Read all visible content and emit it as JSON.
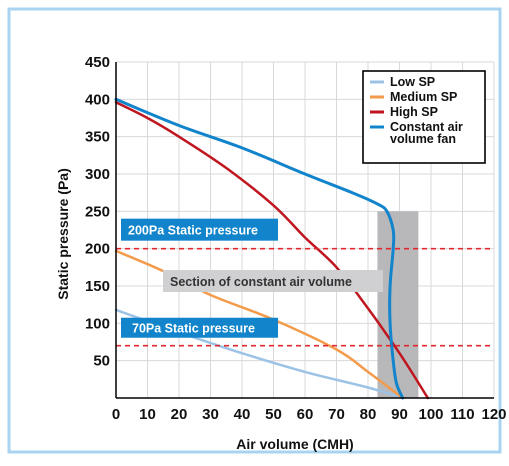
{
  "chart_data": {
    "type": "line",
    "xlabel": "Air volume (CMH)",
    "ylabel": "Static pressure (Pa)",
    "xlim": [
      0,
      120
    ],
    "ylim": [
      0,
      450
    ],
    "x_ticks": [
      "0",
      "10",
      "20",
      "30",
      "40",
      "50",
      "60",
      "70",
      "80",
      "90",
      "100",
      "110",
      "120"
    ],
    "y_ticks": [
      "50",
      "100",
      "150",
      "200",
      "250",
      "300",
      "350",
      "400",
      "450"
    ],
    "grid": true,
    "legend_position": "top-right",
    "series": [
      {
        "name": "Low SP",
        "color": "#9cc3e5",
        "points": [
          [
            0,
            118
          ],
          [
            20,
            88
          ],
          [
            40,
            60
          ],
          [
            60,
            35
          ],
          [
            80,
            14
          ],
          [
            91,
            0
          ]
        ]
      },
      {
        "name": "Medium SP",
        "color": "#f39b4a",
        "points": [
          [
            0,
            197
          ],
          [
            15,
            170
          ],
          [
            30,
            138
          ],
          [
            50,
            105
          ],
          [
            70,
            65
          ],
          [
            80,
            35
          ],
          [
            91,
            0
          ]
        ]
      },
      {
        "name": "High SP",
        "color": "#c0161f",
        "points": [
          [
            0,
            396
          ],
          [
            10,
            375
          ],
          [
            20,
            350
          ],
          [
            35,
            308
          ],
          [
            50,
            258
          ],
          [
            60,
            215
          ],
          [
            70,
            175
          ],
          [
            80,
            120
          ],
          [
            90,
            60
          ],
          [
            99,
            0
          ]
        ]
      },
      {
        "name": "Constant air volume fan",
        "color": "#1184cb",
        "points": [
          [
            0,
            400
          ],
          [
            20,
            365
          ],
          [
            40,
            335
          ],
          [
            60,
            300
          ],
          [
            75,
            275
          ],
          [
            83,
            260
          ],
          [
            86,
            250
          ],
          [
            88,
            225
          ],
          [
            88,
            200
          ],
          [
            87,
            150
          ],
          [
            87,
            100
          ],
          [
            88,
            50
          ],
          [
            89,
            20
          ],
          [
            91,
            0
          ]
        ]
      }
    ],
    "reference_lines": [
      {
        "value": 200,
        "label": "200Pa Static pressure",
        "color": "#e0282f"
      },
      {
        "value": 70,
        "label": "70Pa Static pressure",
        "color": "#e0282f"
      }
    ],
    "region": {
      "x0": 83,
      "x1": 96,
      "y0": 0,
      "y1": 250,
      "label": "Section of constant air volume",
      "color": "#b4b4b6"
    }
  }
}
